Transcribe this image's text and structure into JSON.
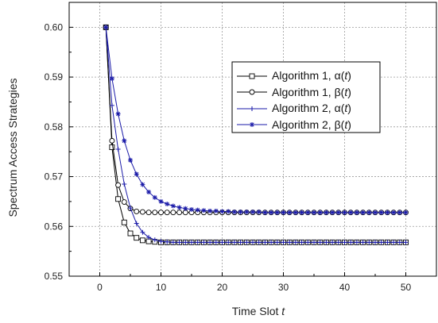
{
  "chart_data": {
    "type": "line",
    "title": "",
    "xlabel": "Time Slot",
    "xlabel_var": "t",
    "ylabel": "Spectrum Access Strategies",
    "xlim": [
      -5,
      55
    ],
    "ylim": [
      0.55,
      0.605
    ],
    "xticks": [
      0,
      10,
      20,
      30,
      40,
      50
    ],
    "yticks": [
      0.55,
      0.56,
      0.57,
      0.58,
      0.59,
      0.6
    ],
    "ytick_labels": [
      "0.55",
      "0.56",
      "0.57",
      "0.58",
      "0.59",
      "0.60"
    ],
    "grid": true,
    "legend_position": "upper-right",
    "x": [
      1,
      2,
      3,
      4,
      5,
      6,
      7,
      8,
      9,
      10,
      11,
      12,
      13,
      14,
      15,
      16,
      17,
      18,
      19,
      20,
      21,
      22,
      23,
      24,
      25,
      26,
      27,
      28,
      29,
      30,
      31,
      32,
      33,
      34,
      35,
      36,
      37,
      38,
      39,
      40,
      41,
      42,
      43,
      44,
      45,
      46,
      47,
      48,
      49,
      50
    ],
    "series": [
      {
        "label_prefix": "Algorithm 1, ",
        "label_greek": "α",
        "label_var": "t",
        "color": "#000000",
        "marker": "square",
        "values": [
          0.6,
          0.5759,
          0.5655,
          0.5608,
          0.5586,
          0.5577,
          0.5572,
          0.557,
          0.5569,
          0.5568,
          0.5568,
          0.5568,
          0.5568,
          0.5568,
          0.5568,
          0.5568,
          0.5568,
          0.5568,
          0.5568,
          0.5568,
          0.5568,
          0.5568,
          0.5568,
          0.5568,
          0.5568,
          0.5568,
          0.5568,
          0.5568,
          0.5568,
          0.5568,
          0.5568,
          0.5568,
          0.5568,
          0.5568,
          0.5568,
          0.5568,
          0.5568,
          0.5568,
          0.5568,
          0.5568,
          0.5568,
          0.5568,
          0.5568,
          0.5568,
          0.5568,
          0.5568,
          0.5568,
          0.5568,
          0.5568,
          0.5568
        ]
      },
      {
        "label_prefix": "Algorithm 1, ",
        "label_greek": "β",
        "label_var": "t",
        "color": "#000000",
        "marker": "circle",
        "values": [
          0.6,
          0.5772,
          0.5683,
          0.5649,
          0.5636,
          0.563,
          0.5629,
          0.5628,
          0.5628,
          0.5628,
          0.5628,
          0.5628,
          0.5628,
          0.5628,
          0.5628,
          0.5628,
          0.5628,
          0.5628,
          0.5628,
          0.5628,
          0.5628,
          0.5628,
          0.5628,
          0.5628,
          0.5628,
          0.5628,
          0.5628,
          0.5628,
          0.5628,
          0.5628,
          0.5628,
          0.5628,
          0.5628,
          0.5628,
          0.5628,
          0.5628,
          0.5628,
          0.5628,
          0.5628,
          0.5628,
          0.5628,
          0.5628,
          0.5628,
          0.5628,
          0.5628,
          0.5628,
          0.5628,
          0.5628,
          0.5628,
          0.5628
        ]
      },
      {
        "label_prefix": "Algorithm 2, ",
        "label_greek": "α",
        "label_var": "t",
        "color": "#1a1aa8",
        "marker": "plus",
        "values": [
          0.6,
          0.5843,
          0.5755,
          0.5685,
          0.5637,
          0.5606,
          0.5588,
          0.5578,
          0.5573,
          0.557,
          0.5569,
          0.5568,
          0.5568,
          0.5568,
          0.5568,
          0.5568,
          0.5568,
          0.5568,
          0.5568,
          0.5568,
          0.5568,
          0.5568,
          0.5568,
          0.5568,
          0.5568,
          0.5568,
          0.5568,
          0.5568,
          0.5568,
          0.5568,
          0.5568,
          0.5568,
          0.5568,
          0.5568,
          0.5568,
          0.5568,
          0.5568,
          0.5568,
          0.5568,
          0.5568,
          0.5568,
          0.5568,
          0.5568,
          0.5568,
          0.5568,
          0.5568,
          0.5568,
          0.5568,
          0.5568,
          0.5568
        ]
      },
      {
        "label_prefix": "Algorithm 2, ",
        "label_greek": "β",
        "label_var": "t",
        "color": "#1a1aa8",
        "marker": "star",
        "values": [
          0.6,
          0.5897,
          0.5826,
          0.5772,
          0.5733,
          0.5705,
          0.5684,
          0.5669,
          0.5658,
          0.565,
          0.5645,
          0.5641,
          0.5638,
          0.5636,
          0.5634,
          0.5633,
          0.5632,
          0.5631,
          0.5631,
          0.563,
          0.563,
          0.5629,
          0.5629,
          0.5629,
          0.5629,
          0.5629,
          0.5628,
          0.5628,
          0.5628,
          0.5628,
          0.5628,
          0.5628,
          0.5628,
          0.5628,
          0.5628,
          0.5628,
          0.5628,
          0.5628,
          0.5628,
          0.5628,
          0.5628,
          0.5628,
          0.5628,
          0.5628,
          0.5628,
          0.5628,
          0.5628,
          0.5628,
          0.5628,
          0.5628
        ]
      }
    ]
  }
}
